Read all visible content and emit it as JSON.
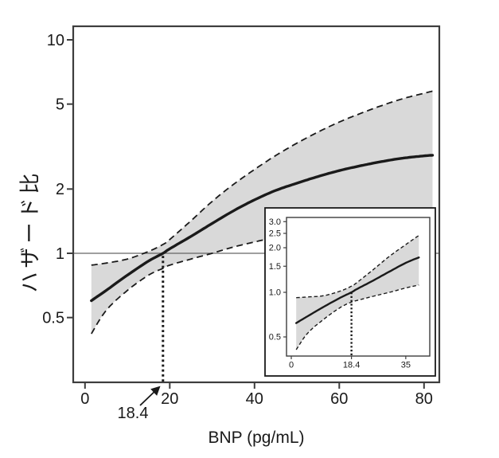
{
  "figure": {
    "x_axis_label": "BNP (pg/mL)",
    "y_axis_label": "ハザード比",
    "annotation_label": "18.4",
    "colors": {
      "band": "#d9d9d9",
      "line": "#1a1a1a",
      "frame": "#3d3d3d",
      "ref_line": "#666666",
      "text": "#1a1a1a",
      "background": "#ffffff"
    }
  },
  "chart_data": [
    {
      "type": "line",
      "title": "",
      "xlabel": "BNP (pg/mL)",
      "ylabel": "ハザード比",
      "y_scale": "log",
      "xlim": [
        -2.8,
        83.6
      ],
      "ylim": [
        0.25,
        11.6
      ],
      "x_tick_values": [
        0,
        20,
        40,
        60,
        80
      ],
      "x_tick_labels": [
        "0",
        "20",
        "40",
        "60",
        "80"
      ],
      "y_tick_values": [
        10,
        5,
        2,
        1,
        0.5
      ],
      "y_tick_labels": [
        "10",
        "5",
        "2",
        "1",
        "0.5"
      ],
      "reference_line_y": 1,
      "threshold_x": 18.4,
      "grid": false,
      "legend": "none",
      "series": [
        {
          "name": "hazard_ratio",
          "x": [
            1.5,
            5,
            10,
            15,
            18.4,
            20,
            25,
            30,
            35,
            40,
            45,
            50,
            55,
            60,
            65,
            70,
            75,
            80,
            82
          ],
          "y": [
            0.6,
            0.67,
            0.79,
            0.92,
            1.0,
            1.05,
            1.2,
            1.38,
            1.58,
            1.78,
            1.97,
            2.13,
            2.29,
            2.44,
            2.57,
            2.69,
            2.79,
            2.86,
            2.88
          ]
        },
        {
          "name": "upper_ci",
          "x": [
            1.5,
            5,
            10,
            15,
            18.4,
            20,
            25,
            30,
            35,
            40,
            45,
            50,
            55,
            60,
            65,
            70,
            75,
            80,
            82
          ],
          "y": [
            0.88,
            0.9,
            0.94,
            1.02,
            1.1,
            1.16,
            1.42,
            1.75,
            2.1,
            2.47,
            2.87,
            3.28,
            3.7,
            4.12,
            4.52,
            4.92,
            5.3,
            5.62,
            5.75
          ]
        },
        {
          "name": "lower_ci",
          "x": [
            1.5,
            5,
            10,
            15,
            18.4,
            20,
            25,
            30,
            35,
            40,
            45,
            50,
            55,
            60,
            65,
            70,
            75,
            80,
            82
          ],
          "y": [
            0.42,
            0.54,
            0.67,
            0.79,
            0.85,
            0.88,
            0.94,
            1.0,
            1.07,
            1.13,
            1.19,
            1.25,
            1.31,
            1.38,
            1.44,
            1.49,
            1.53,
            1.56,
            1.58
          ]
        }
      ]
    },
    {
      "type": "line",
      "title": "",
      "xlabel": "",
      "ylabel": "",
      "y_scale": "log",
      "xlim": [
        -1.5,
        42.3
      ],
      "ylim": [
        0.37,
        3.2
      ],
      "x_tick_values": [
        0,
        18.4,
        35
      ],
      "x_tick_labels": [
        "0",
        "18.4",
        "35"
      ],
      "y_tick_values": [
        3,
        2.5,
        2,
        1.5,
        1,
        0.5
      ],
      "y_tick_labels": [
        "3.0",
        "2.5",
        "2.0",
        "1.5",
        "1.0",
        "0.5"
      ],
      "reference_line_y": null,
      "threshold_x": 18.4,
      "grid": false,
      "legend": "none",
      "series": [
        {
          "name": "hazard_ratio",
          "x": [
            1.5,
            5,
            10,
            15,
            18.4,
            20,
            25,
            30,
            35,
            39
          ],
          "y": [
            0.62,
            0.69,
            0.8,
            0.92,
            1.0,
            1.05,
            1.2,
            1.38,
            1.58,
            1.72
          ]
        },
        {
          "name": "upper_ci",
          "x": [
            1.5,
            5,
            10,
            15,
            18.4,
            20,
            25,
            30,
            35,
            39
          ],
          "y": [
            0.92,
            0.93,
            0.95,
            1.02,
            1.1,
            1.16,
            1.42,
            1.75,
            2.1,
            2.42
          ]
        },
        {
          "name": "lower_ci",
          "x": [
            1.5,
            5,
            10,
            15,
            18.4,
            20,
            25,
            30,
            35,
            39
          ],
          "y": [
            0.41,
            0.53,
            0.66,
            0.79,
            0.86,
            0.88,
            0.94,
            1.0,
            1.07,
            1.12
          ]
        }
      ]
    }
  ]
}
